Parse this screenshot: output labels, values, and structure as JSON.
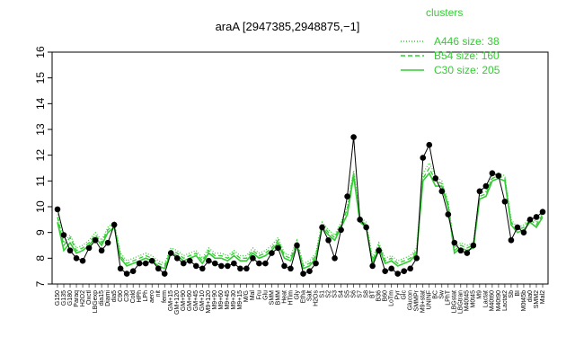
{
  "chart_data": {
    "type": "line",
    "title": "araA [2947385,2948875,−1]",
    "xlabel": "",
    "ylabel": "",
    "ylim": [
      7,
      16
    ],
    "yticks": [
      7,
      8,
      9,
      10,
      11,
      12,
      13,
      14,
      15,
      16
    ],
    "grid": false,
    "legend": {
      "title": "clusters",
      "placement": "top-right",
      "color": "#33cc33",
      "entries": [
        {
          "label": "A446 size: 38",
          "style": "dotted"
        },
        {
          "label": "B54 size: 160",
          "style": "dashed"
        },
        {
          "label": "C30 size: 205",
          "style": "solid"
        }
      ]
    },
    "x_tick_labels": [
      "G150",
      "G135",
      "G180",
      "Paraq",
      "H2O2",
      "Oxctl",
      "LBGexp",
      "dia15",
      "Diami",
      "dia5",
      "C90",
      "C30",
      "Cold",
      "HPh",
      "LPh",
      "aero",
      "nit",
      "ferm",
      "GM+15",
      "GM+120",
      "GM+90",
      "GM+60",
      "GM+45",
      "GM+10",
      "M9+120",
      "M9+90",
      "M9+60",
      "M9+45",
      "M9+30",
      "M9+15",
      "M/G",
      "Mal",
      "Fru",
      "Glu",
      "SMM",
      "BMM",
      "Heat",
      "HTim",
      "Gly",
      "Etha",
      "Salt",
      "H2Os",
      "S1",
      "S2",
      "S3",
      "S4",
      "S5",
      "S6",
      "S7",
      "S8",
      "BT",
      "B36",
      "B60",
      "LoTm",
      "Pyr",
      "Glc",
      "Glucon",
      "SMMPr",
      "M9+stat",
      "UNINF",
      "BC",
      "Sw",
      "LPhT",
      "LBGstat",
      "LBGtran",
      "M40t45",
      "M0t45",
      "M9",
      "Lactat",
      "M40t60",
      "M40t90",
      "Lactat2",
      "Sb",
      "BI",
      "M0t45b",
      "dia0",
      "SMM2",
      "Mal2"
    ],
    "series": [
      {
        "name": "C30",
        "style": "solid",
        "color": "#33cc33",
        "y": [
          9.4,
          8.3,
          8.6,
          8.2,
          8.3,
          8.5,
          8.8,
          8.5,
          9.0,
          9.2,
          8.0,
          7.7,
          7.8,
          7.9,
          8.0,
          7.9,
          7.7,
          7.6,
          8.2,
          8.1,
          7.9,
          8.0,
          8.1,
          7.8,
          8.2,
          8.0,
          8.0,
          7.9,
          8.1,
          7.9,
          7.9,
          8.2,
          8.0,
          8.1,
          8.3,
          8.6,
          8.0,
          7.9,
          8.5,
          7.6,
          7.7,
          8.0,
          9.2,
          8.9,
          8.7,
          9.2,
          9.7,
          11.2,
          9.4,
          9.2,
          7.8,
          8.4,
          7.8,
          7.9,
          7.7,
          7.8,
          7.9,
          8.2,
          11.0,
          11.3,
          10.8,
          10.8,
          10.0,
          8.2,
          8.4,
          8.3,
          8.4,
          10.3,
          10.4,
          11.0,
          11.1,
          11.0,
          9.3,
          9.0,
          9.1,
          9.4,
          9.2,
          9.6
        ]
      },
      {
        "name": "B54",
        "style": "dashed",
        "color": "#33cc33",
        "y": [
          9.6,
          8.5,
          8.8,
          8.3,
          8.4,
          8.6,
          8.9,
          8.6,
          9.1,
          9.3,
          8.1,
          7.8,
          7.9,
          8.0,
          8.1,
          8.0,
          7.8,
          7.7,
          8.3,
          8.2,
          8.0,
          8.1,
          8.2,
          7.9,
          8.3,
          8.1,
          8.1,
          8.0,
          8.2,
          8.0,
          8.0,
          8.3,
          8.1,
          8.2,
          8.4,
          8.7,
          8.1,
          8.0,
          8.6,
          7.7,
          7.8,
          8.1,
          9.3,
          9.0,
          8.8,
          9.3,
          9.9,
          11.3,
          9.5,
          9.3,
          7.9,
          8.5,
          7.9,
          8.0,
          7.8,
          7.9,
          8.0,
          8.3,
          11.1,
          11.5,
          11.0,
          10.9,
          10.1,
          8.3,
          8.5,
          8.4,
          8.5,
          10.4,
          10.5,
          11.1,
          11.2,
          11.1,
          9.4,
          9.1,
          9.2,
          9.5,
          9.3,
          9.7
        ]
      },
      {
        "name": "A446",
        "style": "dotted",
        "color": "#33cc33",
        "y": [
          9.7,
          8.6,
          8.9,
          8.4,
          8.5,
          8.7,
          9.0,
          8.7,
          9.2,
          9.4,
          8.2,
          7.9,
          8.0,
          8.1,
          8.2,
          8.1,
          7.9,
          7.8,
          8.4,
          8.3,
          8.1,
          8.2,
          8.3,
          8.0,
          8.4,
          8.2,
          8.2,
          8.1,
          8.3,
          8.1,
          8.1,
          8.4,
          8.2,
          8.3,
          8.5,
          8.8,
          8.2,
          8.1,
          8.7,
          7.8,
          7.9,
          8.2,
          9.4,
          9.1,
          8.9,
          9.4,
          10.0,
          11.4,
          9.6,
          9.4,
          8.0,
          8.6,
          8.0,
          8.1,
          7.9,
          8.0,
          8.1,
          8.4,
          11.3,
          11.7,
          11.2,
          11.0,
          10.2,
          8.4,
          8.6,
          8.5,
          8.6,
          10.5,
          10.6,
          11.2,
          11.3,
          11.2,
          9.5,
          9.2,
          9.3,
          9.6,
          9.4,
          9.8
        ]
      },
      {
        "name": "araA",
        "style": "points-line",
        "color": "#000000",
        "y": [
          9.9,
          8.9,
          8.3,
          8.0,
          7.9,
          8.4,
          8.7,
          8.3,
          8.6,
          9.3,
          7.6,
          7.4,
          7.5,
          7.8,
          7.8,
          7.9,
          7.6,
          7.4,
          8.2,
          8.0,
          7.8,
          7.9,
          7.7,
          7.6,
          7.9,
          7.8,
          7.7,
          7.7,
          7.8,
          7.6,
          7.6,
          8.0,
          7.8,
          7.8,
          8.2,
          8.4,
          7.7,
          7.6,
          8.5,
          7.4,
          7.5,
          7.8,
          9.2,
          8.7,
          8.0,
          9.1,
          10.4,
          12.7,
          9.5,
          9.2,
          7.7,
          8.3,
          7.5,
          7.6,
          7.4,
          7.5,
          7.6,
          8.0,
          11.9,
          12.4,
          11.1,
          10.6,
          9.7,
          8.6,
          8.3,
          8.2,
          8.5,
          10.6,
          10.8,
          11.3,
          11.2,
          10.2,
          8.7,
          9.2,
          9.0,
          9.5,
          9.6,
          9.8
        ]
      }
    ]
  }
}
